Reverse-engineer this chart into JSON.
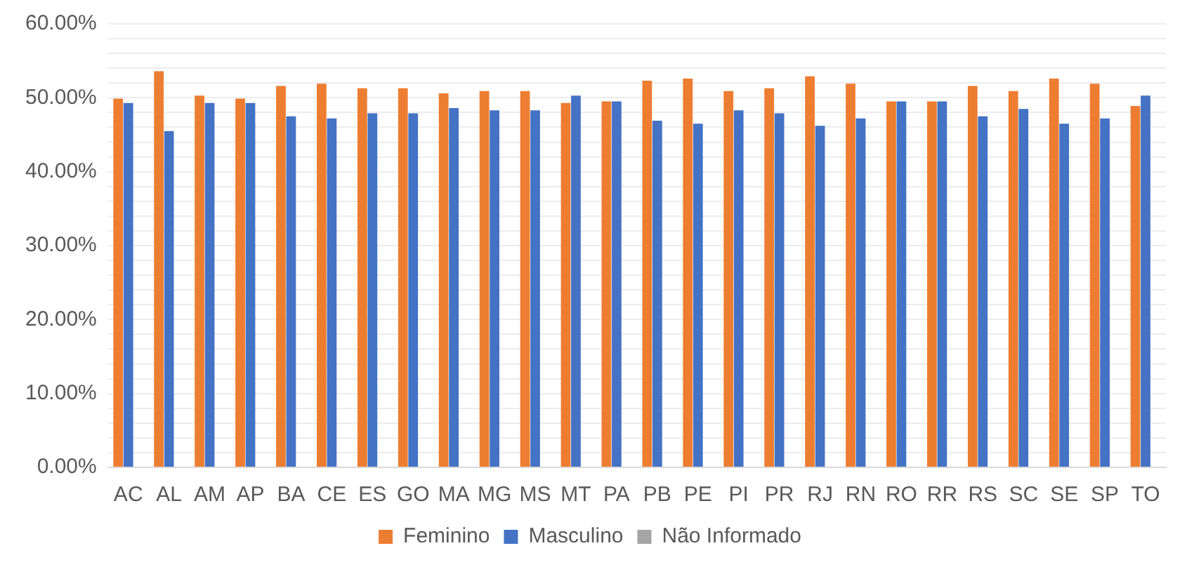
{
  "chart_data": {
    "type": "bar",
    "categories": [
      "AC",
      "AL",
      "AM",
      "AP",
      "BA",
      "CE",
      "ES",
      "GO",
      "MA",
      "MG",
      "MS",
      "MT",
      "PA",
      "PB",
      "PE",
      "PI",
      "PR",
      "RJ",
      "RN",
      "RO",
      "RR",
      "RS",
      "SC",
      "SE",
      "SP",
      "TO"
    ],
    "series": [
      {
        "name": "Feminino",
        "color": "#ed7d31",
        "values": [
          49.9,
          53.6,
          50.3,
          49.9,
          51.6,
          51.9,
          51.3,
          51.3,
          50.6,
          50.9,
          50.9,
          49.3,
          49.5,
          52.3,
          52.6,
          50.9,
          51.3,
          52.9,
          51.9,
          49.5,
          49.5,
          51.6,
          50.9,
          52.6,
          51.9,
          48.9
        ]
      },
      {
        "name": "Masculino",
        "color": "#4472c4",
        "values": [
          49.3,
          45.5,
          49.3,
          49.3,
          47.5,
          47.2,
          47.9,
          47.9,
          48.6,
          48.3,
          48.3,
          50.3,
          49.5,
          46.9,
          46.5,
          48.3,
          47.9,
          46.2,
          47.2,
          49.5,
          49.5,
          47.5,
          48.5,
          46.5,
          47.2,
          50.3
        ]
      },
      {
        "name": "Não Informado",
        "color": "#a5a5a5",
        "values": [
          0,
          0,
          0,
          0,
          0,
          0,
          0,
          0,
          0,
          0,
          0,
          0,
          0,
          0,
          0,
          0,
          0,
          0,
          0,
          0,
          0,
          0,
          0,
          0,
          0,
          0
        ]
      }
    ],
    "ylim": [
      0,
      60
    ],
    "yticks": [
      {
        "value": 0,
        "label": "0.00%"
      },
      {
        "value": 2,
        "label": null
      },
      {
        "value": 4,
        "label": null
      },
      {
        "value": 6,
        "label": null
      },
      {
        "value": 8,
        "label": null
      },
      {
        "value": 10,
        "label": "10.00%"
      },
      {
        "value": 12,
        "label": null
      },
      {
        "value": 14,
        "label": null
      },
      {
        "value": 16,
        "label": null
      },
      {
        "value": 18,
        "label": null
      },
      {
        "value": 20,
        "label": "20.00%"
      },
      {
        "value": 22,
        "label": null
      },
      {
        "value": 24,
        "label": null
      },
      {
        "value": 26,
        "label": null
      },
      {
        "value": 28,
        "label": null
      },
      {
        "value": 30,
        "label": "30.00%"
      },
      {
        "value": 32,
        "label": null
      },
      {
        "value": 34,
        "label": null
      },
      {
        "value": 36,
        "label": null
      },
      {
        "value": 38,
        "label": null
      },
      {
        "value": 40,
        "label": "40.00%"
      },
      {
        "value": 42,
        "label": null
      },
      {
        "value": 44,
        "label": null
      },
      {
        "value": 46,
        "label": null
      },
      {
        "value": 48,
        "label": null
      },
      {
        "value": 50,
        "label": "50.00%"
      },
      {
        "value": 52,
        "label": null
      },
      {
        "value": 54,
        "label": null
      },
      {
        "value": 56,
        "label": null
      },
      {
        "value": 58,
        "label": null
      },
      {
        "value": 60,
        "label": "60.00%"
      }
    ],
    "grid": "y",
    "legend": "bottom"
  }
}
